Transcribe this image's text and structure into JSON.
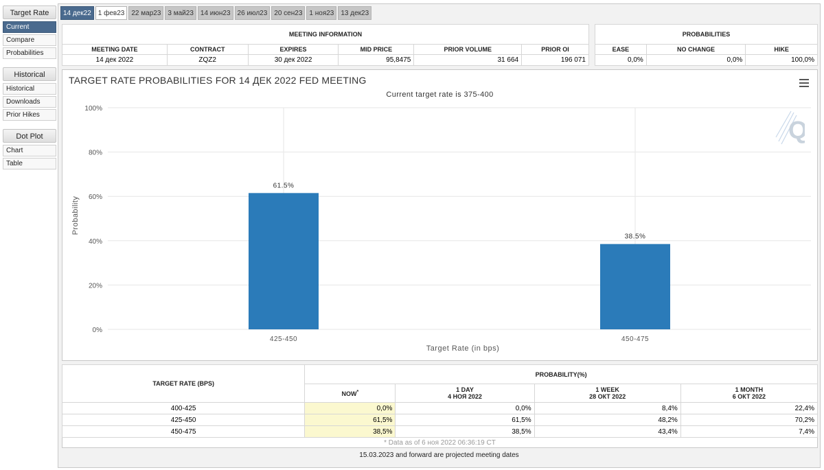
{
  "sidebar": {
    "target_rate_head": "Target Rate",
    "target_rate_items": [
      "Current",
      "Compare",
      "Probabilities"
    ],
    "historical_head": "Historical",
    "historical_items": [
      "Historical",
      "Downloads",
      "Prior Hikes"
    ],
    "dot_plot_head": "Dot Plot",
    "dot_plot_items": [
      "Chart",
      "Table"
    ]
  },
  "tabs": [
    "14 дек22",
    "1 фев23",
    "22 мар23",
    "3 май23",
    "14 июн23",
    "26 июл23",
    "20 сен23",
    "1 ноя23",
    "13 дек23"
  ],
  "meeting": {
    "title": "MEETING INFORMATION",
    "headers": [
      "MEETING DATE",
      "CONTRACT",
      "EXPIRES",
      "MID PRICE",
      "PRIOR VOLUME",
      "PRIOR OI"
    ],
    "values": [
      "14 дек 2022",
      "ZQZ2",
      "30 дек 2022",
      "95,8475",
      "31 664",
      "196 071"
    ]
  },
  "probabilities": {
    "title": "PROBABILITIES",
    "headers": [
      "EASE",
      "NO CHANGE",
      "HIKE"
    ],
    "values": [
      "0,0%",
      "0,0%",
      "100,0%"
    ]
  },
  "chart": {
    "title": "TARGET RATE PROBABILITIES FOR 14 ДЕК 2022 FED MEETING",
    "subtitle": "Current target rate is 375-400",
    "y_ticks": [
      "0%",
      "20%",
      "40%",
      "60%",
      "80%",
      "100%"
    ],
    "accent": "#2b7bb9"
  },
  "chart_data": {
    "type": "bar",
    "title": "TARGET RATE PROBABILITIES FOR 14 ДЕК 2022 FED MEETING",
    "subtitle": "Current target rate is 375-400",
    "categories": [
      "425-450",
      "450-475"
    ],
    "values": [
      61.5,
      38.5
    ],
    "data_labels": [
      "61.5%",
      "38.5%"
    ],
    "xlabel": "Target Rate (in bps)",
    "ylabel": "Probability",
    "ylim": [
      0,
      100
    ],
    "grid": true
  },
  "prob_table": {
    "rate_header": "TARGET RATE (BPS)",
    "prob_header": "PROBABILITY(%)",
    "now_header": "NOW",
    "now_mark": "*",
    "col_day": "1 DAY",
    "col_day_date": "4 НОЯ 2022",
    "col_week": "1 WEEK",
    "col_week_date": "28 ОКТ 2022",
    "col_month": "1 MONTH",
    "col_month_date": "6 ОКТ 2022",
    "rows": [
      {
        "rate": "400-425",
        "now": "0,0%",
        "day": "0,0%",
        "week": "8,4%",
        "month": "22,4%"
      },
      {
        "rate": "425-450",
        "now": "61,5%",
        "day": "61,5%",
        "week": "48,2%",
        "month": "70,2%"
      },
      {
        "rate": "450-475",
        "now": "38,5%",
        "day": "38,5%",
        "week": "43,4%",
        "month": "7,4%"
      }
    ],
    "data_note": "* Data as of 6 ноя 2022 06:36:19 CT"
  },
  "footer_note": "15.03.2023 and forward are projected meeting dates"
}
